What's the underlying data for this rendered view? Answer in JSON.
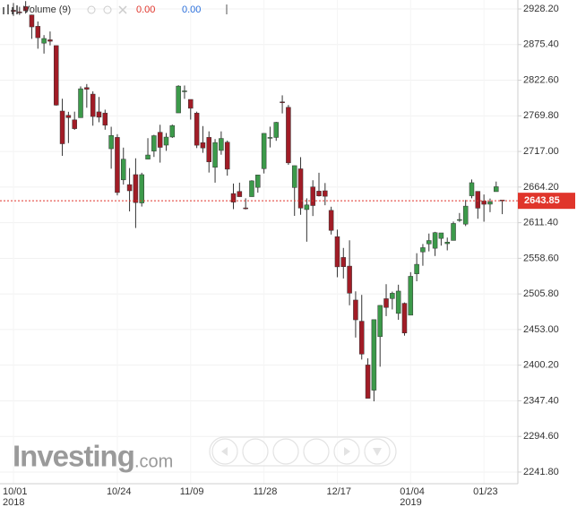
{
  "chart_data": {
    "type": "candlestick",
    "legend": {
      "indicator": "Volume (9)",
      "value_a": "0.00",
      "value_b": "0.00"
    },
    "watermark": {
      "brand": "Investing",
      "suffix": ".com"
    },
    "categories": [
      "10/01",
      null,
      null,
      null,
      null,
      null,
      null,
      null,
      null,
      null,
      null,
      null,
      null,
      null,
      null,
      null,
      null,
      "10/24",
      null,
      null,
      null,
      null,
      null,
      null,
      null,
      null,
      null,
      null,
      null,
      "11/09",
      null,
      null,
      null,
      null,
      null,
      null,
      null,
      null,
      null,
      null,
      null,
      "11/28",
      null,
      null,
      null,
      null,
      null,
      null,
      null,
      null,
      null,
      null,
      null,
      "12/17",
      null,
      null,
      null,
      null,
      null,
      null,
      null,
      null,
      null,
      null,
      null,
      "01/04",
      null,
      null,
      null,
      null,
      null,
      null,
      null,
      null,
      null,
      null,
      null,
      "01/23",
      null,
      null,
      null
    ],
    "category_years": [
      "2018",
      null,
      null,
      null,
      null,
      null,
      null,
      null,
      null,
      null,
      null,
      null,
      null,
      null,
      null,
      null,
      null,
      null,
      null,
      null,
      null,
      null,
      null,
      null,
      null,
      null,
      null,
      null,
      null,
      null,
      null,
      null,
      null,
      null,
      null,
      null,
      null,
      null,
      null,
      null,
      null,
      null,
      null,
      null,
      null,
      null,
      null,
      null,
      null,
      null,
      null,
      null,
      null,
      null,
      null,
      null,
      null,
      null,
      null,
      null,
      null,
      null,
      null,
      null,
      null,
      "2019",
      null,
      null,
      null,
      null,
      null,
      null,
      null,
      null,
      null,
      null,
      null,
      null,
      null,
      null,
      null
    ],
    "open": [
      2926.29,
      2923.8,
      2931.69,
      2919.35,
      2902.54,
      2877.53,
      2882.51,
      2873.9,
      2776.87,
      2770.54,
      2763.83,
      2767.05,
      2811.67,
      2802.0,
      2775.66,
      2773.94,
      2721.03,
      2737.87,
      2674.88,
      2667.86,
      2682.65,
      2640.68,
      2705.6,
      2717.58,
      2745.45,
      2726.37,
      2738.4,
      2774.13,
      2806.38,
      2794.1,
      2773.93,
      2730.05,
      2737.9,
      2693.52,
      2718.54,
      2730.74,
      2654.6,
      2657.74,
      2633.36,
      2649.97,
      2663.75,
      2691.45,
      2736.97,
      2737.76,
      2790.5,
      2782.43,
      2663.51,
      2691.26,
      2630.86,
      2664.44,
      2658.23,
      2658.7,
      2629.68,
      2590.75,
      2559.9,
      2547.05,
      2496.77,
      2465.38,
      2400.56,
      2363.12,
      2442.5,
      2498.77,
      2498.94,
      2476.96,
      2491.92,
      2474.33,
      2535.61,
      2568.11,
      2580.0,
      2573.51,
      2588.11,
      2580.31,
      2585.1,
      2614.75,
      2609.28,
      2651.27,
      2657.88,
      2643.48,
      2638.84,
      2657.44,
      2644.97
    ],
    "high": [
      2937.06,
      2931.42,
      2939.86,
      2919.78,
      2909.64,
      2889.45,
      2894.83,
      2874.02,
      2795.14,
      2775.77,
      2775.99,
      2813.46,
      2816.94,
      2806.04,
      2797.77,
      2778.94,
      2753.59,
      2742.59,
      2722.7,
      2692.38,
      2706.85,
      2685.43,
      2736.69,
      2741.67,
      2756.55,
      2744.27,
      2756.82,
      2815.15,
      2814.75,
      2794.1,
      2775.99,
      2754.6,
      2746.8,
      2735.38,
      2746.75,
      2733.16,
      2669.44,
      2670.73,
      2647.55,
      2674.35,
      2682.53,
      2744.0,
      2753.75,
      2760.88,
      2800.18,
      2785.93,
      2696.15,
      2708.54,
      2647.51,
      2674.35,
      2685.44,
      2670.19,
      2635.07,
      2601.13,
      2573.99,
      2585.29,
      2509.63,
      2504.41,
      2410.34,
      2467.76,
      2489.1,
      2520.27,
      2509.24,
      2519.49,
      2493.14,
      2538.07,
      2566.16,
      2579.82,
      2595.32,
      2597.82,
      2596.27,
      2589.32,
      2613.08,
      2625.76,
      2645.06,
      2675.47,
      2657.88,
      2653.19,
      2647.2,
      2672.38,
      2644.97
    ],
    "low": [
      2917.91,
      2919.37,
      2921.36,
      2883.92,
      2869.29,
      2862.08,
      2874.27,
      2784.86,
      2710.51,
      2729.44,
      2749.03,
      2766.91,
      2781.81,
      2755.18,
      2760.27,
      2749.22,
      2691.43,
      2651.89,
      2667.84,
      2628.16,
      2603.54,
      2635.34,
      2705.6,
      2708.85,
      2700.44,
      2717.94,
      2737.08,
      2774.13,
      2794.99,
      2764.24,
      2722.0,
      2714.98,
      2685.75,
      2670.75,
      2712.16,
      2681.09,
      2631.52,
      2649.82,
      2631.09,
      2649.97,
      2655.89,
      2684.38,
      2722.94,
      2732.76,
      2773.38,
      2697.18,
      2621.53,
      2623.14,
      2583.23,
      2621.3,
      2650.26,
      2637.27,
      2593.84,
      2530.54,
      2528.71,
      2488.96,
      2441.18,
      2408.55,
      2351.1,
      2346.58,
      2397.94,
      2472.89,
      2482.82,
      2467.47,
      2443.96,
      2474.33,
      2524.56,
      2547.56,
      2568.89,
      2562.02,
      2577.4,
      2570.41,
      2585.1,
      2612.68,
      2606.36,
      2647.58,
      2617.27,
      2612.86,
      2627.01,
      2657.33,
      2624.06
    ],
    "close": [
      2924.59,
      2923.43,
      2925.51,
      2901.61,
      2885.57,
      2884.43,
      2880.34,
      2785.68,
      2728.37,
      2767.13,
      2750.79,
      2809.92,
      2809.21,
      2768.78,
      2767.78,
      2755.88,
      2740.69,
      2656.1,
      2705.57,
      2658.69,
      2641.25,
      2682.63,
      2711.74,
      2740.37,
      2723.06,
      2738.31,
      2755.45,
      2813.89,
      2806.83,
      2781.01,
      2726.22,
      2722.18,
      2701.58,
      2730.2,
      2736.27,
      2690.73,
      2641.89,
      2649.93,
      2632.56,
      2673.45,
      2682.17,
      2743.79,
      2737.8,
      2760.17,
      2790.37,
      2700.06,
      2695.95,
      2633.08,
      2637.72,
      2636.78,
      2651.07,
      2650.54,
      2599.95,
      2545.94,
      2546.16,
      2506.96,
      2467.42,
      2416.62,
      2351.1,
      2467.7,
      2488.83,
      2485.74,
      2506.85,
      2510.03,
      2447.89,
      2531.94,
      2549.69,
      2574.41,
      2584.96,
      2596.64,
      2596.26,
      2582.61,
      2610.3,
      2616.1,
      2635.96,
      2670.71,
      2632.9,
      2638.7,
      2642.33,
      2664.76,
      2643.85
    ],
    "up_color": "#3c9a4a",
    "down_color": "#a11c26",
    "last_price_color": "#e0352b",
    "ylim": [
      2224.5,
      2941.5
    ],
    "yticks": [
      {
        "value": 2928.2,
        "label": "2928.20"
      },
      {
        "value": 2875.4,
        "label": "2875.40"
      },
      {
        "value": 2822.6,
        "label": "2822.60"
      },
      {
        "value": 2769.8,
        "label": "2769.80"
      },
      {
        "value": 2717,
        "label": "2717.00"
      },
      {
        "value": 2664.2,
        "label": "2664.20"
      },
      {
        "value": 2611.4,
        "label": "2611.40"
      },
      {
        "value": 2558.6,
        "label": "2558.60"
      },
      {
        "value": 2505.8,
        "label": "2505.80"
      },
      {
        "value": 2453,
        "label": "2453.00"
      },
      {
        "value": 2400.2,
        "label": "2400.20"
      },
      {
        "value": 2347.4,
        "label": "2347.40"
      },
      {
        "value": 2294.6,
        "label": "2294.60"
      },
      {
        "value": 2241.8,
        "label": "2241.80"
      }
    ],
    "grid": true
  }
}
